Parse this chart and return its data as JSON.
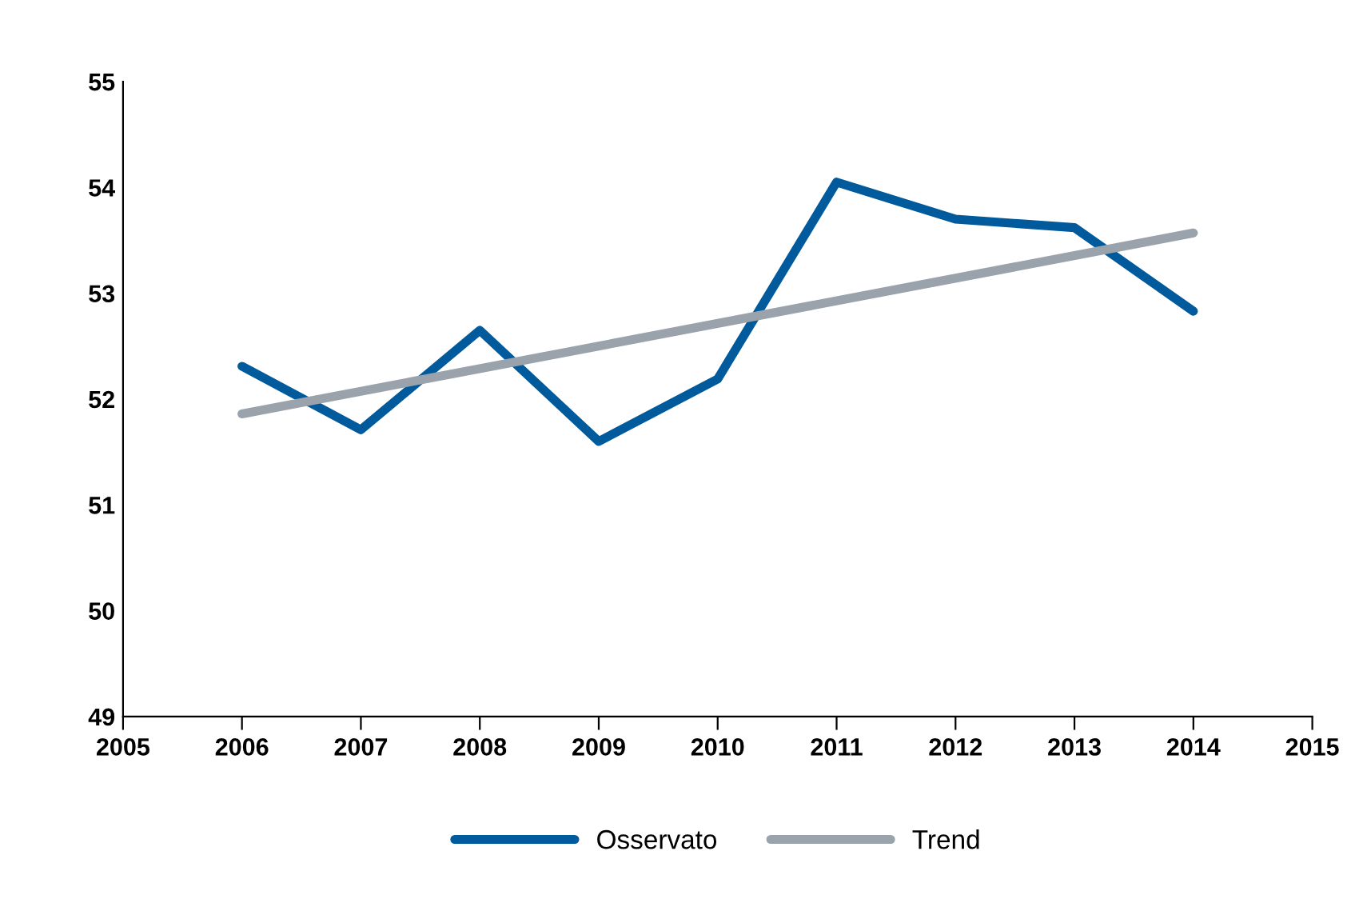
{
  "chart_data": {
    "type": "line",
    "x": [
      2006,
      2007,
      2008,
      2009,
      2010,
      2011,
      2012,
      2013,
      2014
    ],
    "series": [
      {
        "name": "Osservato",
        "color": "#005a9c",
        "values": [
          52.31,
          51.71,
          52.65,
          51.6,
          52.19,
          54.05,
          53.7,
          53.62,
          52.83
        ]
      },
      {
        "name": "Trend",
        "color": "#9aa3ab",
        "x": [
          2006,
          2014
        ],
        "values": [
          51.86,
          53.57
        ]
      }
    ],
    "xlim": [
      2005,
      2015
    ],
    "xticks": [
      2005,
      2006,
      2007,
      2008,
      2009,
      2010,
      2011,
      2012,
      2013,
      2014,
      2015
    ],
    "ylim": [
      49,
      55
    ],
    "yticks": [
      49,
      50,
      51,
      52,
      53,
      54,
      55
    ],
    "grid": false,
    "legend": "bottom",
    "marker": "none",
    "line_style": "solid"
  }
}
